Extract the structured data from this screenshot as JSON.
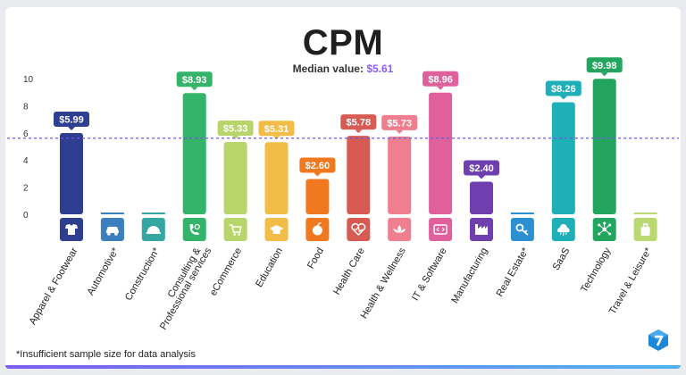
{
  "chart_data": {
    "type": "bar",
    "title": "CPM",
    "subtitle_label": "Median value:",
    "subtitle_value": "$5.61",
    "median": 5.61,
    "ylim": [
      0,
      10
    ],
    "yticks": [
      "0",
      "2",
      "4",
      "6",
      "8",
      "10"
    ],
    "xlabel": "",
    "ylabel": "",
    "categories": [
      "Apparel & Footwear",
      "Automotive*",
      "Construction*",
      "Consulting & Professional services",
      "eCommerce",
      "Education",
      "Food",
      "Health Care",
      "Health & Wellness",
      "IT & Software",
      "Manufacturing",
      "Real Estate*",
      "SaaS",
      "Technology",
      "Travel & Leisure*"
    ],
    "values": [
      5.99,
      null,
      null,
      8.93,
      5.33,
      5.31,
      2.6,
      5.78,
      5.73,
      8.96,
      2.4,
      null,
      8.26,
      9.98,
      null
    ],
    "value_labels": [
      "$5.99",
      "",
      "",
      "$8.93",
      "$5.33",
      "$5.31",
      "$2.60",
      "$5.78",
      "$5.73",
      "$8.96",
      "$2.40",
      "",
      "$8.26",
      "$9.98",
      ""
    ],
    "colors": [
      "#2e3f91",
      "#3c7fbe",
      "#34a7a3",
      "#34b36b",
      "#b7d56b",
      "#f2bd46",
      "#f0781e",
      "#d75a53",
      "#ef7f8e",
      "#e0609b",
      "#6f3fb0",
      "#2b8fd0",
      "#1fb0b7",
      "#23a55f",
      "#b9d872"
    ],
    "icons": [
      "tshirt-icon",
      "car-icon",
      "helmet-icon",
      "phone-icon",
      "cart-icon",
      "graduation-cap-icon",
      "apple-icon",
      "heartbeat-icon",
      "lotus-icon",
      "code-icon",
      "factory-icon",
      "key-icon",
      "cloud-icon",
      "network-icon",
      "luggage-icon"
    ],
    "footnote": "*Insufficient sample size for data analysis"
  }
}
